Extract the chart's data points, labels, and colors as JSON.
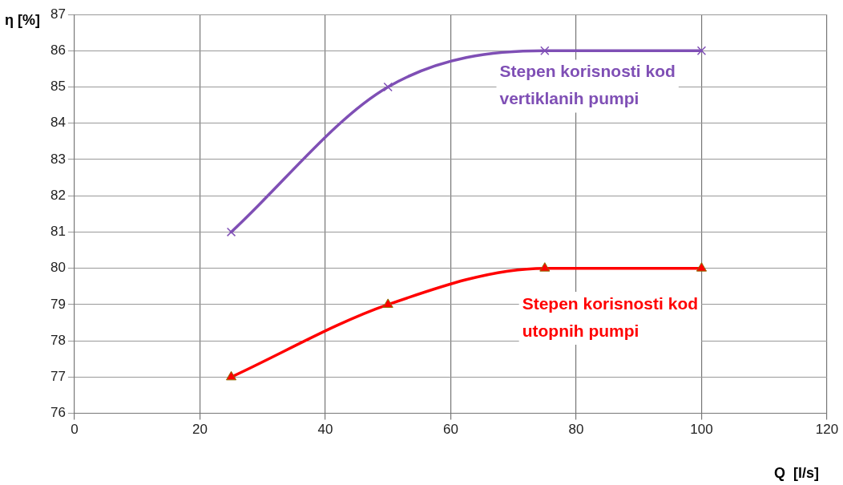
{
  "chart_data": {
    "type": "line",
    "xlabel": "Q  [l/s]",
    "ylabel": "η [%]",
    "x": [
      25,
      50,
      75,
      100
    ],
    "series": [
      {
        "name": "Stepen korisnosti kod vertiklanih pumpi",
        "color": "#7f4fb5",
        "marker": "cross",
        "values": [
          81,
          85,
          86,
          86
        ]
      },
      {
        "name": "Stepen korisnosti kod utopnih pumpi",
        "color": "#ff0000",
        "marker": "triangle",
        "values": [
          77,
          79,
          80,
          80
        ]
      }
    ],
    "xlim": [
      0,
      120
    ],
    "xticks": [
      0,
      20,
      40,
      60,
      80,
      100,
      120
    ],
    "ylim": [
      76,
      87
    ],
    "yticks": [
      76,
      77,
      78,
      79,
      80,
      81,
      82,
      83,
      84,
      85,
      86,
      87
    ],
    "grid": true,
    "legend": false,
    "line_style": "solid"
  }
}
